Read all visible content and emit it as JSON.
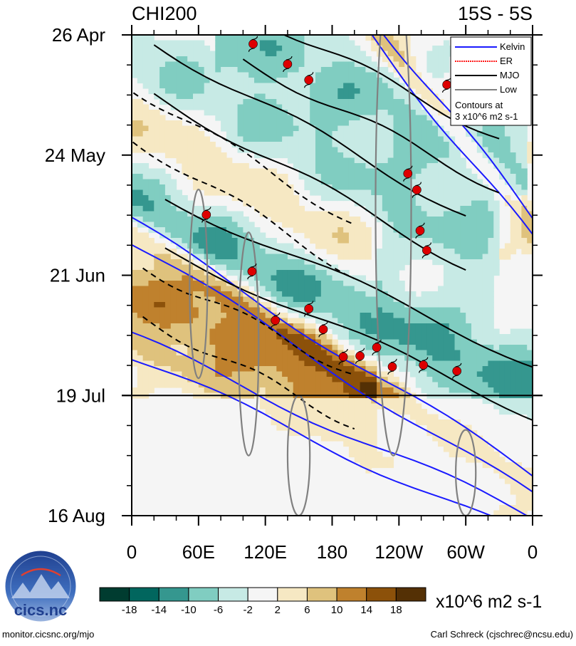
{
  "chart_data": {
    "type": "heatmap",
    "title_left": "CHI200",
    "title_right": "15S - 5S",
    "x_ticks": [
      "0",
      "60E",
      "120E",
      "180",
      "120W",
      "60W",
      "0"
    ],
    "x_values": [
      0,
      60,
      120,
      180,
      240,
      300,
      360
    ],
    "y_ticks": [
      "26 Apr",
      "24 May",
      "21 Jun",
      "19 Jul",
      "16 Aug"
    ],
    "y_values": [
      0,
      28,
      56,
      84,
      112
    ],
    "xlim": [
      0,
      360
    ],
    "ylim": [
      0,
      112
    ],
    "forecast_start_day": 84,
    "legend": {
      "items": [
        {
          "label": "Kelvin",
          "color": "#1a1aff",
          "style": "solid"
        },
        {
          "label": "ER",
          "color": "#ff1a1a",
          "style": "dotted"
        },
        {
          "label": "MJO",
          "color": "#000000",
          "style": "solid"
        },
        {
          "label": "Low",
          "color": "#808080",
          "style": "solid"
        }
      ],
      "note": [
        "Contours at",
        "3 x10^6 m2 s-1"
      ]
    },
    "colorbar": {
      "labels": [
        "-18",
        "-14",
        "-10",
        "-6",
        "-2",
        "2",
        "6",
        "10",
        "14",
        "18"
      ],
      "colors": [
        "#003c30",
        "#01665e",
        "#35978f",
        "#80cdc1",
        "#c7eae5",
        "#f5f5f5",
        "#f6e8c3",
        "#dfc27d",
        "#bf812d",
        "#8c510a",
        "#543005"
      ],
      "units": "x10^6 m2 s-1"
    },
    "kelvin_bands": [
      {
        "start": [
          -5,
          45
        ],
        "end": [
          360,
          105
        ],
        "anomaly": 10
      },
      {
        "start": [
          -5,
          72
        ],
        "end": [
          360,
          115
        ],
        "anomaly": 5
      },
      {
        "start": [
          130,
          -30
        ],
        "end": [
          360,
          45
        ],
        "anomaly": 8
      }
    ],
    "mjo_bands": [
      {
        "start": [
          30,
          44
        ],
        "end": [
          380,
          85
        ],
        "anomaly": -11
      },
      {
        "start": [
          20,
          8
        ],
        "end": [
          300,
          48
        ],
        "anomaly": -7
      },
      {
        "start": [
          100,
          0
        ],
        "end": [
          330,
          30
        ],
        "anomaly": -8
      },
      {
        "start": [
          10,
          60
        ],
        "end": [
          200,
          85
        ],
        "anomaly": 12
      },
      {
        "start": [
          -20,
          15
        ],
        "end": [
          200,
          50
        ],
        "anomaly": 6
      }
    ],
    "storms": [
      {
        "lon": 109,
        "day": 2.1
      },
      {
        "lon": 140,
        "day": 6.8
      },
      {
        "lon": 159,
        "day": 10.5
      },
      {
        "lon": 283,
        "day": 11.6
      },
      {
        "lon": 248,
        "day": 32.3
      },
      {
        "lon": 256,
        "day": 36.1
      },
      {
        "lon": 67,
        "day": 41.9
      },
      {
        "lon": 259,
        "day": 45.6
      },
      {
        "lon": 265,
        "day": 50.2
      },
      {
        "lon": 108,
        "day": 55.1
      },
      {
        "lon": 159,
        "day": 63.8
      },
      {
        "lon": 129,
        "day": 66.5
      },
      {
        "lon": 172,
        "day": 68.6
      },
      {
        "lon": 220,
        "day": 72.8
      },
      {
        "lon": 205,
        "day": 74.8
      },
      {
        "lon": 190,
        "day": 75.0
      },
      {
        "lon": 234,
        "day": 77.3
      },
      {
        "lon": 262,
        "day": 76.9
      },
      {
        "lon": 292,
        "day": 78.3
      }
    ]
  },
  "footer": {
    "left": "monitor.cicsnc.org/mjo",
    "right": "Carl Schreck (cjschrec@ncsu.edu)"
  },
  "logo": {
    "text": "cics.nc",
    "ring_text": "Cooperative Institute for Climate and Satellites"
  }
}
